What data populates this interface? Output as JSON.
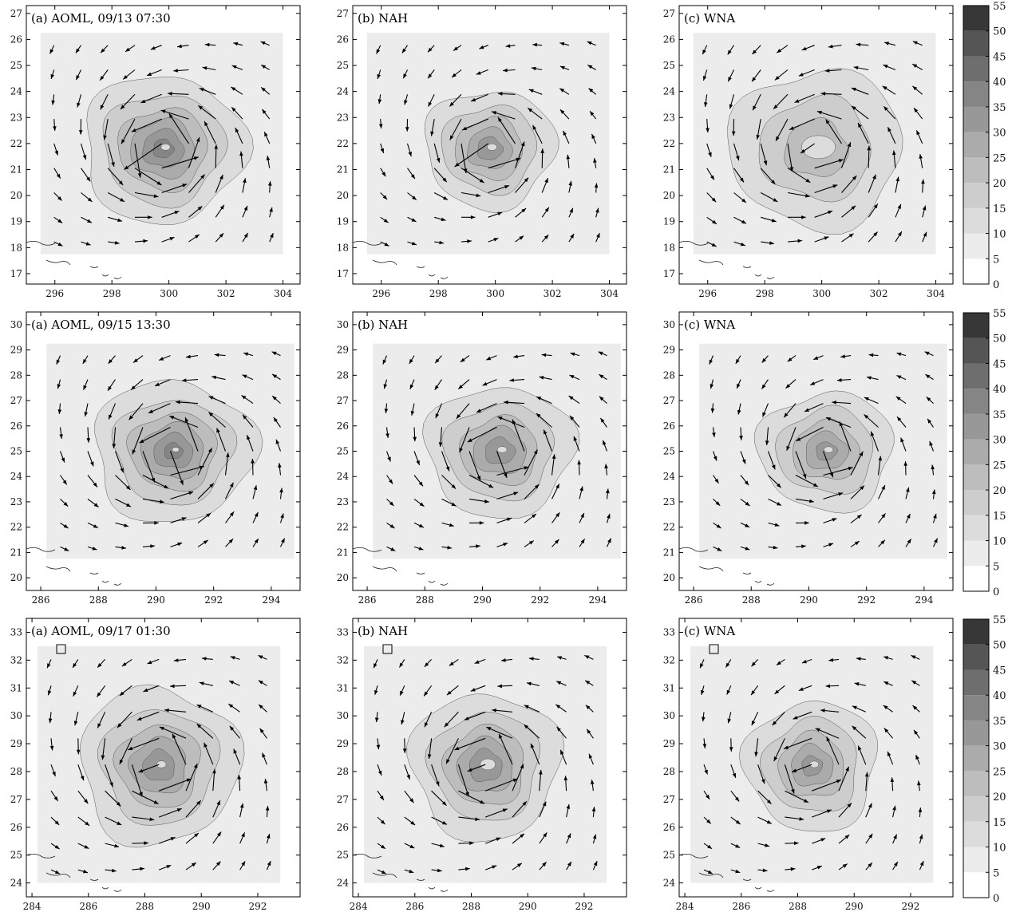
{
  "figure": {
    "rows": [
      {
        "xlim": [
          295,
          304.6
        ],
        "ylim": [
          16.6,
          27.3
        ],
        "xticks": [
          296,
          298,
          300,
          302,
          304
        ],
        "yticks": [
          17,
          18,
          19,
          20,
          21,
          22,
          23,
          24,
          25,
          26,
          27
        ],
        "domain": {
          "x": [
            295.5,
            304
          ],
          "y": [
            17.75,
            26.25
          ]
        },
        "center": [
          299.8,
          21.8
        ],
        "titles": [
          "(a) AOML, 09/13 07:30",
          "(b) NAH",
          "(c) WNA"
        ]
      },
      {
        "xlim": [
          285.5,
          295.0
        ],
        "ylim": [
          19.5,
          30.5
        ],
        "xticks": [
          286,
          288,
          290,
          292,
          294
        ],
        "yticks": [
          20,
          21,
          22,
          23,
          24,
          25,
          26,
          27,
          28,
          29,
          30
        ],
        "domain": {
          "x": [
            286.2,
            294.8
          ],
          "y": [
            20.75,
            29.25
          ]
        },
        "center": [
          290.6,
          25.0
        ],
        "titles": [
          "(a) AOML, 09/15 13:30",
          "(b) NAH",
          "(c) WNA"
        ]
      },
      {
        "xlim": [
          283.8,
          293.5
        ],
        "ylim": [
          23.5,
          33.5
        ],
        "xticks": [
          284,
          286,
          288,
          290,
          292
        ],
        "yticks": [
          24,
          25,
          26,
          27,
          28,
          29,
          30,
          31,
          32,
          33
        ],
        "domain": {
          "x": [
            284.2,
            292.8
          ],
          "y": [
            24.0,
            32.5
          ]
        },
        "center": [
          288.5,
          28.2
        ],
        "titles": [
          "(a) AOML, 09/17 01:30",
          "(b) NAH",
          "(c) WNA"
        ]
      }
    ],
    "colorbar_ticks": [
      "0",
      "5",
      "10",
      "15",
      "20",
      "25",
      "30",
      "35",
      "40",
      "45",
      "50",
      "55"
    ],
    "colorbar_levels": [
      0,
      5,
      10,
      15,
      20,
      25,
      30,
      35,
      40,
      45,
      50,
      55
    ],
    "level_colors": [
      "#ffffff",
      "#ececec",
      "#dcdcdc",
      "#cdcdcd",
      "#bdbdbd",
      "#ababab",
      "#989898",
      "#858585",
      "#6e6e6e",
      "#555555",
      "#373737",
      "#111111"
    ]
  },
  "chart_data": [
    {
      "type": "heatmap",
      "title": "(a) AOML, 09/13 07:30",
      "units": "wind speed contours with vectors",
      "xlim": [
        295,
        304.6
      ],
      "ylim": [
        16.6,
        27.3
      ],
      "vortex_center": [
        299.8,
        21.8
      ],
      "peak_speed": 37,
      "grid": false
    },
    {
      "type": "heatmap",
      "title": "(b) NAH",
      "xlim": [
        295,
        304.6
      ],
      "ylim": [
        16.6,
        27.3
      ],
      "vortex_center": [
        299.8,
        21.8
      ],
      "peak_speed": 33,
      "grid": false
    },
    {
      "type": "heatmap",
      "title": "(c) WNA",
      "xlim": [
        295,
        304.6
      ],
      "ylim": [
        16.6,
        27.3
      ],
      "vortex_center": [
        299.8,
        21.8
      ],
      "peak_speed": 22,
      "grid": false
    },
    {
      "type": "heatmap",
      "title": "(a) AOML, 09/15 13:30",
      "xlim": [
        285.5,
        295.0
      ],
      "ylim": [
        19.5,
        30.5
      ],
      "vortex_center": [
        290.6,
        25.0
      ],
      "peak_speed": 37,
      "grid": false
    },
    {
      "type": "heatmap",
      "title": "(b) NAH",
      "xlim": [
        285.5,
        295.0
      ],
      "ylim": [
        19.5,
        30.5
      ],
      "vortex_center": [
        290.6,
        25.0
      ],
      "peak_speed": 34,
      "grid": false
    },
    {
      "type": "heatmap",
      "title": "(c) WNA",
      "xlim": [
        285.5,
        295.0
      ],
      "ylim": [
        19.5,
        30.5
      ],
      "vortex_center": [
        290.6,
        25.0
      ],
      "peak_speed": 32,
      "grid": false
    },
    {
      "type": "heatmap",
      "title": "(a) AOML, 09/17 01:30",
      "xlim": [
        283.8,
        293.5
      ],
      "ylim": [
        23.5,
        33.5
      ],
      "vortex_center": [
        288.5,
        28.2
      ],
      "peak_speed": 34,
      "grid": false
    },
    {
      "type": "heatmap",
      "title": "(b) NAH",
      "xlim": [
        283.8,
        293.5
      ],
      "ylim": [
        23.5,
        33.5
      ],
      "vortex_center": [
        288.5,
        28.2
      ],
      "peak_speed": 33,
      "grid": false
    },
    {
      "type": "heatmap",
      "title": "(c) WNA",
      "xlim": [
        283.8,
        293.5
      ],
      "ylim": [
        23.5,
        33.5
      ],
      "vortex_center": [
        288.5,
        28.2
      ],
      "peak_speed": 32,
      "grid": false
    }
  ]
}
